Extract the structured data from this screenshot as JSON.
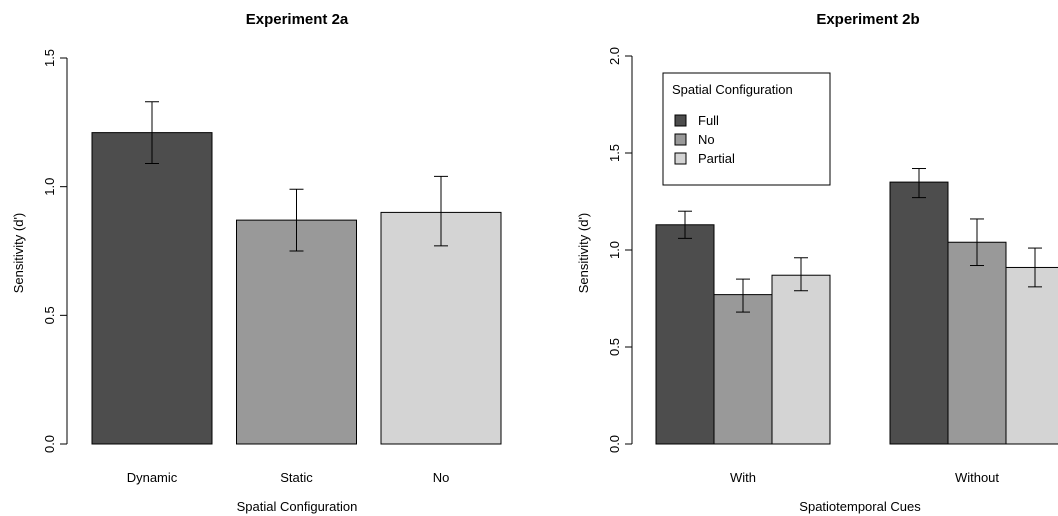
{
  "colors": {
    "dark": "#4d4d4d",
    "mid": "#999999",
    "light": "#d4d4d4",
    "stroke": "#000000"
  },
  "chart_data": [
    {
      "type": "bar",
      "title": "Experiment 2a",
      "xlabel": "Spatial Configuration",
      "ylabel": "Sensitivity (d')",
      "ylim": [
        0,
        1.5
      ],
      "yticks": [
        "0.0",
        "0.5",
        "1.0",
        "1.5"
      ],
      "categories": [
        "Dynamic",
        "Static",
        "No"
      ],
      "values": [
        1.21,
        0.87,
        0.9
      ],
      "error_low": [
        1.09,
        0.75,
        0.77
      ],
      "error_high": [
        1.33,
        0.99,
        1.04
      ]
    },
    {
      "type": "bar",
      "title": "Experiment 2b",
      "xlabel": "Spatiotemporal Cues",
      "ylabel": "Sensitivity (d')",
      "ylim": [
        0,
        2.0
      ],
      "yticks": [
        "0.0",
        "0.5",
        "1.0",
        "1.5",
        "2.0"
      ],
      "categories": [
        "With",
        "Without"
      ],
      "legend": {
        "title": "Spatial Configuration",
        "entries": [
          "Full",
          "No",
          "Partial"
        ],
        "position": "top-left"
      },
      "series": [
        {
          "name": "Full",
          "values": [
            1.13,
            1.35
          ],
          "error_low": [
            1.06,
            1.27
          ],
          "error_high": [
            1.2,
            1.42
          ]
        },
        {
          "name": "No",
          "values": [
            0.77,
            1.04
          ],
          "error_low": [
            0.68,
            0.92
          ],
          "error_high": [
            0.85,
            1.16
          ]
        },
        {
          "name": "Partial",
          "values": [
            0.87,
            0.91
          ],
          "error_low": [
            0.79,
            0.81
          ],
          "error_high": [
            0.96,
            1.01
          ]
        }
      ]
    }
  ]
}
